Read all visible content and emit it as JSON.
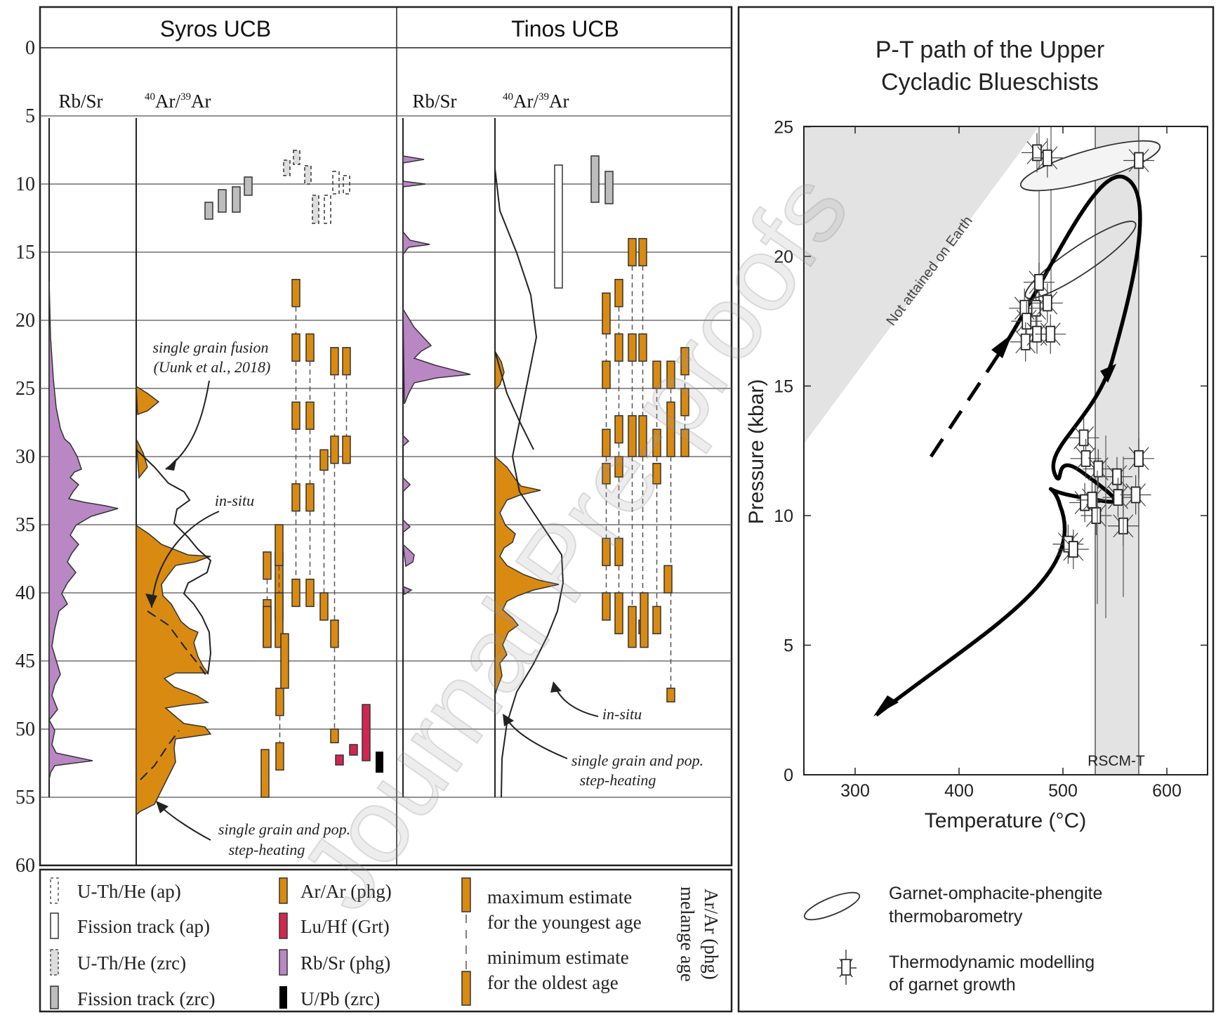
{
  "left_panel": {
    "columns": [
      {
        "title": "Syros UCB",
        "rb_label": "Rb/Sr",
        "ar_label_sup": "40",
        "ar_label_mid": "Ar/",
        "ar_label_sup2": "39",
        "ar_label_end": "Ar"
      },
      {
        "title": "Tinos UCB",
        "rb_label": "Rb/Sr",
        "ar_label_sup": "40",
        "ar_label_mid": "Ar/",
        "ar_label_sup2": "39",
        "ar_label_end": "Ar"
      }
    ],
    "age_ticks": [
      "0",
      "5",
      "10",
      "15",
      "20",
      "25",
      "30",
      "35",
      "40",
      "45",
      "50",
      "55",
      "60"
    ],
    "annotations": {
      "single_grain_fusion": "single grain fusion",
      "single_grain_fusion_ref": "(Uunk et al., 2018)",
      "in_situ_syros": "in-situ",
      "syros_step_1": "single grain and pop.",
      "syros_step_2": "step-heating",
      "in_situ_tinos": "in-situ",
      "tinos_step_1": "single grain and pop.",
      "tinos_step_2": "step-heating"
    },
    "colors": {
      "arar": "#D98A10",
      "luhf": "#D12650",
      "rbsr": "#B987C4",
      "upb": "#000000",
      "ft_zrc": "#BDBDBD"
    }
  },
  "legend": {
    "items": [
      "U-Th/He (ap)",
      "Fission track (ap)",
      "U-Th/He (zrc)",
      "Fission track (zrc)",
      "Ar/Ar (phg)",
      "Lu/Hf (Grt)",
      "Rb/Sr (phg)",
      "U/Pb (zrc)"
    ],
    "max_1": "maximum estimate",
    "max_2": "for the youngest age",
    "min_1": "minimum estimate",
    "min_2": "for the oldest age",
    "vertical_1": "Ar/Ar (phg)",
    "vertical_2": "melange age"
  },
  "pt_panel": {
    "title_1": "P-T path of the Upper",
    "title_2": "Cycladic Blueschists",
    "ylabel": "Pressure (kbar)",
    "xlabel": "Temperature (°C)",
    "y_ticks": [
      "0",
      "5",
      "10",
      "15",
      "20",
      "25"
    ],
    "x_ticks": [
      "300",
      "400",
      "500",
      "600"
    ],
    "not_attained": "Not attained on Earth",
    "rscm": "RSCM-T",
    "legend_1a": "Garnet-omphacite-phengite",
    "legend_1b": "thermobarometry",
    "legend_2a": "Thermodynamic modelling",
    "legend_2b": "of garnet growth"
  },
  "watermark": "Journal Pre-proofs"
}
